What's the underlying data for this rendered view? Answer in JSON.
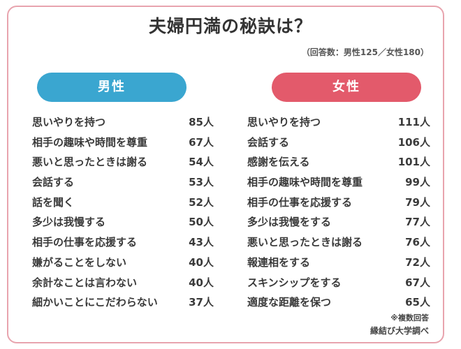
{
  "title": "夫婦円満の秘訣は？",
  "subtitle": "（回答数：男性125／女性180）",
  "chart_data": {
    "type": "table",
    "unit": "人",
    "groups": [
      {
        "name": "男性",
        "color": "#3aa6d0",
        "items": [
          {
            "label": "思いやりを持つ",
            "value": 85
          },
          {
            "label": "相手の趣味や時間を尊重",
            "value": 67
          },
          {
            "label": "悪いと思ったときは謝る",
            "value": 54
          },
          {
            "label": "会話する",
            "value": 53
          },
          {
            "label": "話を聞く",
            "value": 52
          },
          {
            "label": "多少は我慢する",
            "value": 50
          },
          {
            "label": "相手の仕事を応援する",
            "value": 43
          },
          {
            "label": "嫌がることをしない",
            "value": 40
          },
          {
            "label": "余計なことは言わない",
            "value": 40
          },
          {
            "label": "細かいことにこだわらない",
            "value": 37
          }
        ]
      },
      {
        "name": "女性",
        "color": "#e35a6b",
        "items": [
          {
            "label": "思いやりを持つ",
            "value": 111
          },
          {
            "label": "会話する",
            "value": 106
          },
          {
            "label": "感謝を伝える",
            "value": 101
          },
          {
            "label": "相手の趣味や時間を尊重",
            "value": 99
          },
          {
            "label": "相手の仕事を応援する",
            "value": 79
          },
          {
            "label": "多少は我慢をする",
            "value": 77
          },
          {
            "label": "悪いと思ったときは謝る",
            "value": 76
          },
          {
            "label": "報連相をする",
            "value": 72
          },
          {
            "label": "スキンシップをする",
            "value": 67
          },
          {
            "label": "適度な距離を保つ",
            "value": 65
          }
        ]
      }
    ]
  },
  "notes": {
    "multiple": "※複数回答",
    "source": "縁結び大学調べ"
  },
  "colors": {
    "border": "#e8a4ae",
    "male": "#3aa6d0",
    "female": "#e35a6b"
  }
}
